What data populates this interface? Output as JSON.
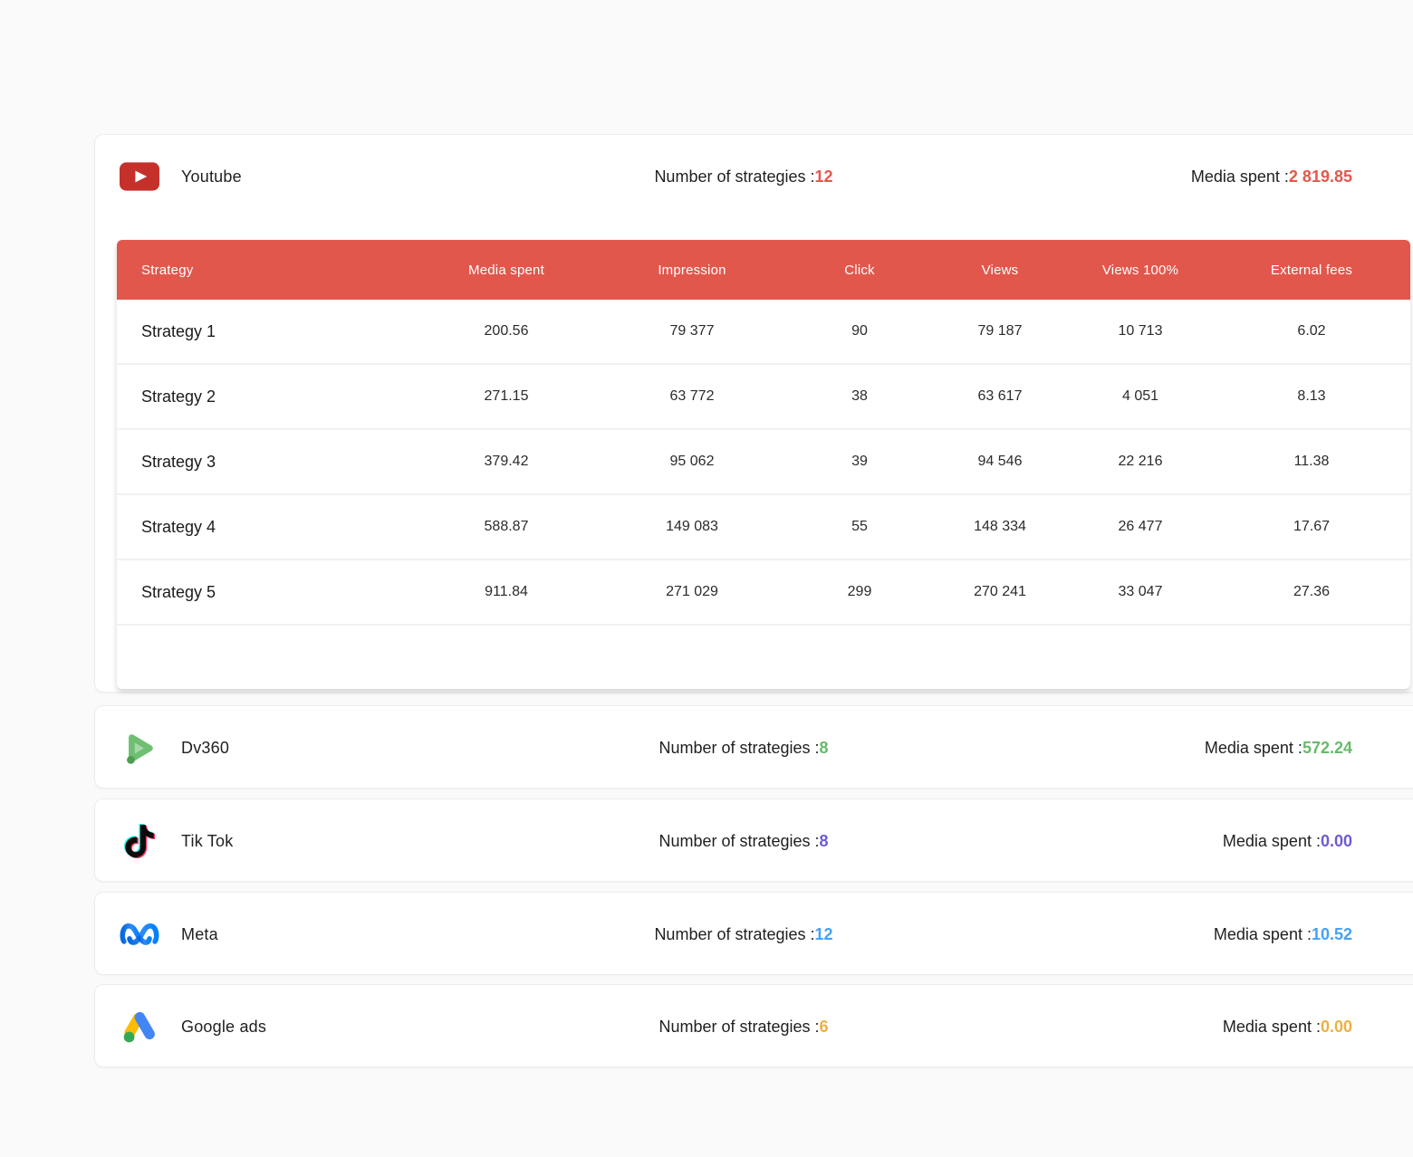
{
  "labels": {
    "strategies_label": "Number of strategies :",
    "media_label": "Media spent :"
  },
  "platforms": [
    {
      "name": "Youtube",
      "icon": "youtube-icon",
      "accent": "#E2574C",
      "strategies_value": "12",
      "media_value": "2 819.85"
    },
    {
      "name": "Dv360",
      "icon": "dv360-icon",
      "accent": "#66BB6A",
      "strategies_value": "8",
      "media_value": "572.24"
    },
    {
      "name": "Tik Tok",
      "icon": "tiktok-icon",
      "accent": "#7159D1",
      "strategies_value": "8",
      "media_value": "0.00"
    },
    {
      "name": "Meta",
      "icon": "meta-icon",
      "accent": "#47A0F4",
      "strategies_value": "12",
      "media_value": "10.52"
    },
    {
      "name": "Google ads",
      "icon": "google-ads-icon",
      "accent": "#EDB041",
      "strategies_value": "6",
      "media_value": "0.00"
    }
  ],
  "table": {
    "header_bg": "#E2574C",
    "header_text_color": "#FFFFFF",
    "columns": [
      "Strategy",
      "Media spent",
      "Impression",
      "Click",
      "Views",
      "Views 100%",
      "External fees"
    ],
    "rows": [
      [
        "Strategy 1",
        "200.56",
        "79 377",
        "90",
        "79 187",
        "10 713",
        "6.02"
      ],
      [
        "Strategy 2",
        "271.15",
        "63 772",
        "38",
        "63 617",
        "4 051",
        "8.13"
      ],
      [
        "Strategy 3",
        "379.42",
        "95 062",
        "39",
        "94 546",
        "22 216",
        "11.38"
      ],
      [
        "Strategy 4",
        "588.87",
        "149 083",
        "55",
        "148 334",
        "26 477",
        "17.67"
      ],
      [
        "Strategy 5",
        "911.84",
        "271 029",
        "299",
        "270 241",
        "33 047",
        "27.36"
      ]
    ]
  }
}
